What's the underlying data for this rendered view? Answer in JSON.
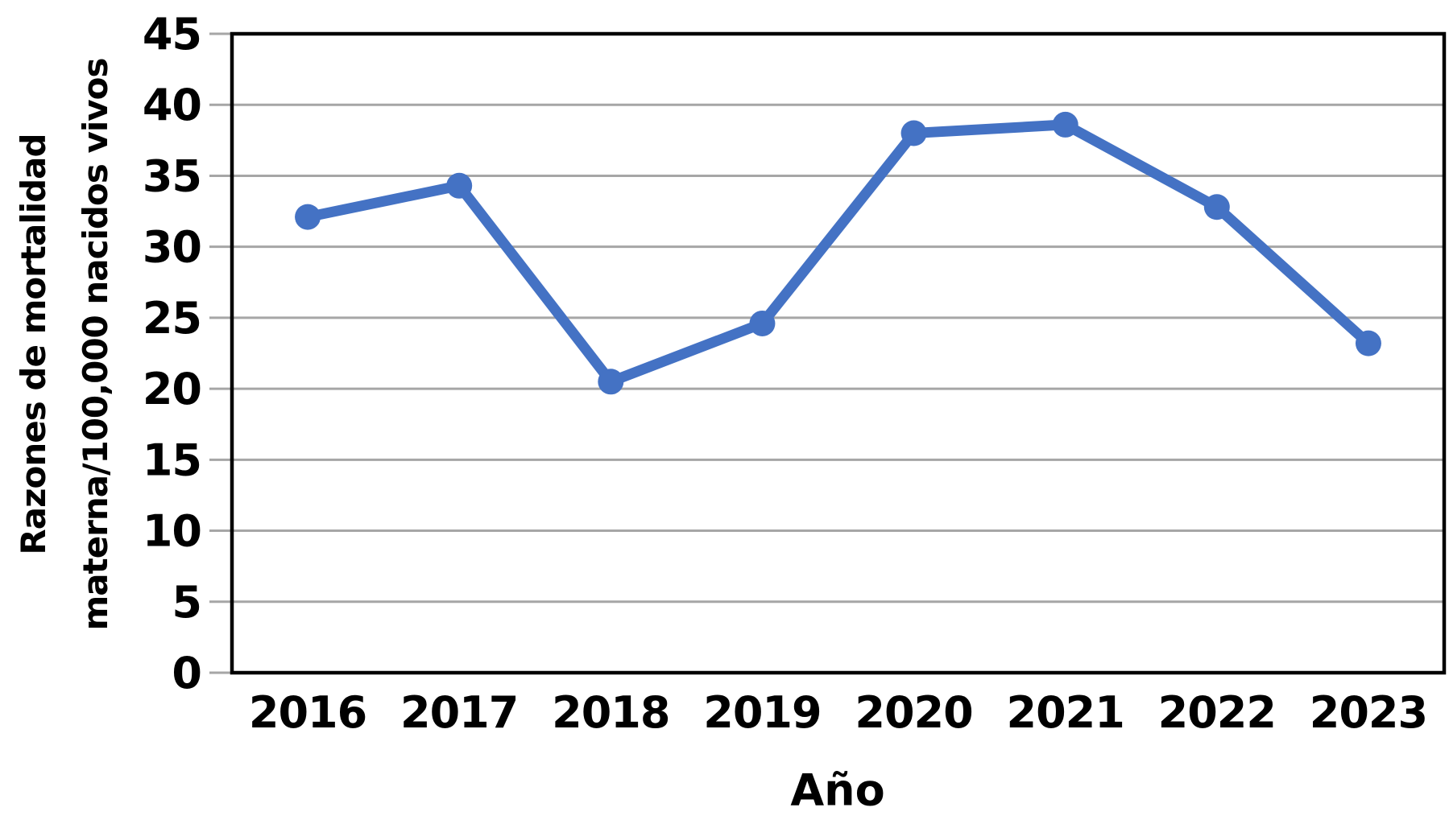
{
  "chart_data": {
    "type": "line",
    "categories": [
      "2016",
      "2017",
      "2018",
      "2019",
      "2020",
      "2021",
      "2022",
      "2023"
    ],
    "series": [
      {
        "name": "",
        "values": [
          32.1,
          34.3,
          20.5,
          24.6,
          38.0,
          38.6,
          32.8,
          23.2
        ]
      }
    ],
    "title": "",
    "xlabel": "Año",
    "ylabel": "Razones de mortalidad materna/100,000 nacidos vivos",
    "ylabel_line1": "Razones de mortalidad",
    "ylabel_line2": "materna/100,000 nacidos vivos",
    "ylim": [
      0,
      45
    ],
    "ytick_step": 5,
    "yticks": [
      "0",
      "5",
      "10",
      "15",
      "20",
      "25",
      "30",
      "35",
      "40",
      "45"
    ],
    "grid": "horizontal gridlines on",
    "legend": "none",
    "line_color": "#4472C4",
    "marker": "filled circle",
    "gridline_color": "#A6A6A6",
    "axis_color": "#000000",
    "text_color": "#000000"
  }
}
